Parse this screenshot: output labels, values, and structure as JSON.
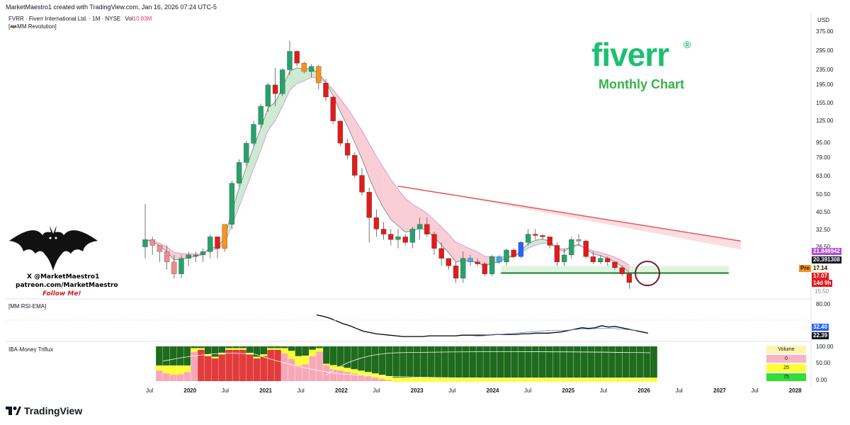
{
  "header": {
    "created_by": "MarketMaestro1 created with TradingView.com, Jan 16, 2026 07:24 UTC-5",
    "symbol_line": "FVRR · Fiverr International Ltd. · 1M · NYSE",
    "vol_label": "Vol",
    "vol_value": "10.83M",
    "indicator_label": "[🦇MM Revolution]"
  },
  "branding": {
    "logo_text": "fiverr",
    "logo_reg": "®",
    "subtitle": "Monthly Chart",
    "watermark_line1": "X @MarketMaestro1",
    "watermark_line2": "patreon.com/MarketMaestro",
    "watermark_line3": "Follow Me!",
    "footer_logo": "TradingView",
    "footer_icon": "tradingview-logo-icon"
  },
  "colors": {
    "bull": "#26a26a",
    "bull_dark": "#1e8e4a",
    "bear": "#e21b1b",
    "bear_light": "#f08b8b",
    "orange": "#f7931a",
    "blue": "#2962ff",
    "trendline": "#e05a5a",
    "support": "#1a7a2a",
    "fiverr_green": "#1dbf73"
  },
  "price_axis": {
    "currency": "USD",
    "ticks": [
      "375.00",
      "295.00",
      "235.00",
      "195.00",
      "155.00",
      "125.00",
      "95.00",
      "79.00",
      "63.00",
      "50.50",
      "40.50",
      "32.50",
      "26.50"
    ],
    "tags": {
      "ma_value": "21.846942",
      "ma2_value": "20.391308",
      "pre_label": "Pre",
      "pre_value": "17.14",
      "last_price": "17.07",
      "countdown": "14d 9h",
      "hidden_tick": "15.50"
    }
  },
  "rsi_pane": {
    "label": "[MM RSI-EMA]",
    "tick_top": "80.00",
    "value1": "32.40",
    "value2": "22.39"
  },
  "money_pane": {
    "label": "IBA-Money Triflux",
    "ticks": [
      "100.00",
      "50.00",
      "0.00"
    ],
    "volume_box": {
      "title": "Volume",
      "rows": [
        "0",
        "25",
        "75"
      ]
    }
  },
  "time_axis": [
    "Jul",
    "2020",
    "Jul",
    "2021",
    "Jul",
    "2022",
    "Jul",
    "2023",
    "Jul",
    "2024",
    "Jul",
    "2025",
    "Jul",
    "2026",
    "Jul",
    "2027",
    "Jul",
    "2028"
  ],
  "chart_data": {
    "type": "candlestick",
    "title": "",
    "x_start": "2019-06",
    "interval": "1M",
    "y_scale": "log",
    "ylim": [
      15.5,
      375
    ],
    "series": [
      {
        "name": "price",
        "ohlc": [
          [
            26.5,
            45,
            23,
            29
          ],
          [
            29,
            30,
            24,
            27
          ],
          [
            27,
            27,
            22,
            25
          ],
          [
            25,
            27,
            20,
            22
          ],
          [
            22,
            24,
            18,
            19
          ],
          [
            19,
            24,
            18,
            23
          ],
          [
            23,
            25,
            21,
            24
          ],
          [
            24,
            25,
            22,
            24
          ],
          [
            24,
            26,
            22,
            25
          ],
          [
            25,
            31,
            23,
            30
          ],
          [
            30,
            30,
            23,
            26
          ],
          [
            26,
            35,
            25,
            35
          ],
          [
            35,
            60,
            33,
            58
          ],
          [
            58,
            78,
            56,
            75
          ],
          [
            75,
            98,
            72,
            95
          ],
          [
            95,
            125,
            92,
            120
          ],
          [
            120,
            155,
            115,
            150
          ],
          [
            150,
            200,
            140,
            195
          ],
          [
            195,
            240,
            150,
            175
          ],
          [
            175,
            240,
            170,
            235
          ],
          [
            235,
            336,
            220,
            295
          ],
          [
            295,
            300,
            245,
            255
          ],
          [
            255,
            260,
            225,
            230
          ],
          [
            230,
            252,
            215,
            245
          ],
          [
            245,
            250,
            185,
            200
          ],
          [
            200,
            210,
            160,
            168
          ],
          [
            168,
            170,
            120,
            125
          ],
          [
            125,
            125,
            92,
            95
          ],
          [
            95,
            100,
            78,
            82
          ],
          [
            82,
            85,
            62,
            64
          ],
          [
            64,
            70,
            50,
            52
          ],
          [
            52,
            55,
            28,
            38
          ],
          [
            38,
            42,
            30,
            33
          ],
          [
            33,
            36,
            29,
            31
          ],
          [
            31,
            33,
            27,
            29
          ],
          [
            29,
            33,
            26,
            30
          ],
          [
            30,
            31,
            27,
            28
          ],
          [
            28,
            34,
            26,
            33
          ],
          [
            33,
            38,
            29,
            35
          ],
          [
            35,
            38,
            30,
            31
          ],
          [
            31,
            32,
            24,
            26
          ],
          [
            26,
            28,
            21,
            23
          ],
          [
            23,
            23,
            20,
            21
          ],
          [
            21,
            22,
            17,
            18
          ],
          [
            18,
            25,
            17,
            23
          ],
          [
            23,
            24,
            21,
            22
          ],
          [
            22,
            23,
            21,
            21.5
          ],
          [
            21.5,
            22,
            18.5,
            19
          ],
          [
            19,
            24,
            18.5,
            23.5
          ],
          [
            23.5,
            24,
            21.5,
            22
          ],
          [
            22,
            26,
            21,
            25.5
          ],
          [
            25.5,
            26,
            23,
            23.5
          ],
          [
            23.5,
            28.5,
            23,
            28
          ],
          [
            28,
            33,
            27,
            31
          ],
          [
            31,
            33,
            29,
            30.5
          ],
          [
            30.5,
            31,
            29,
            30
          ],
          [
            30,
            29,
            26,
            27
          ],
          [
            27,
            28,
            21,
            22
          ],
          [
            22,
            26,
            21,
            24
          ],
          [
            24,
            30,
            23,
            29
          ],
          [
            29,
            31,
            27,
            28.5
          ],
          [
            28.5,
            29,
            23,
            23.5
          ],
          [
            23.5,
            25,
            21.5,
            22
          ],
          [
            22,
            24,
            21.5,
            23
          ],
          [
            23,
            23.5,
            21,
            22
          ],
          [
            22,
            22,
            20,
            20.5
          ],
          [
            20.5,
            21,
            18.5,
            19
          ],
          [
            19,
            19,
            15.8,
            17.07
          ]
        ]
      },
      {
        "name": "ema_fast",
        "values": []
      },
      {
        "name": "ema_slow",
        "values": []
      }
    ],
    "annotations": {
      "trendline": [
        [
          "2022-05",
          56
        ],
        [
          "2026-01",
          28
        ]
      ],
      "support": [
        [
          "2023-09",
          19.2
        ],
        [
          "2026-01",
          19.2
        ]
      ]
    },
    "rsi": {
      "line": [
        72,
        70,
        67,
        63,
        59,
        56,
        52,
        48,
        46,
        44,
        43,
        42,
        41,
        40,
        40,
        40,
        40,
        41,
        41,
        41,
        41,
        41,
        42,
        42,
        42,
        42,
        42,
        43,
        43,
        43,
        43,
        44,
        44,
        45,
        45,
        45,
        46,
        47,
        49,
        51,
        53,
        52,
        53,
        56,
        54,
        55,
        53,
        51,
        49,
        47,
        45
      ],
      "signal": [
        40,
        41,
        42,
        43,
        44,
        45,
        46,
        47,
        48,
        49,
        49,
        49,
        50,
        51,
        51,
        52,
        52,
        52,
        51,
        50,
        49
      ]
    }
  }
}
